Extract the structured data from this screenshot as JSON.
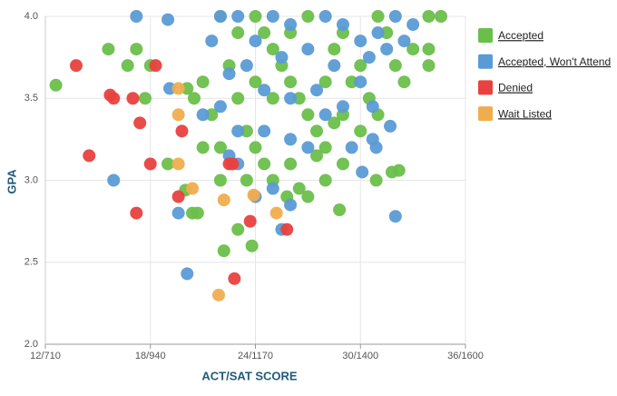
{
  "chart_data": {
    "type": "scatter",
    "x_label": "ACT/SAT SCORE",
    "y_label": "GPA",
    "xlim": [
      12,
      36
    ],
    "ylim": [
      2,
      4
    ],
    "xticks": [
      {
        "value": 12,
        "label": "12/710"
      },
      {
        "value": 18,
        "label": "18/940"
      },
      {
        "value": 24,
        "label": "24/1170"
      },
      {
        "value": 30,
        "label": "30/1400"
      },
      {
        "value": 36,
        "label": "36/1600"
      }
    ],
    "yticks": [
      {
        "value": 2,
        "label": "2.0"
      },
      {
        "value": 2.5,
        "label": "2.5"
      },
      {
        "value": 3,
        "label": "3.0"
      },
      {
        "value": 3.5,
        "label": "3.5"
      },
      {
        "value": 4,
        "label": "4.0"
      }
    ],
    "grid": true,
    "legend": "right",
    "series": [
      {
        "name": "Accepted",
        "color": "#6abf4b",
        "x": [
          12.6,
          15.6,
          17.2,
          16.7,
          17.7,
          18.0,
          19.0,
          20.1,
          20.4,
          20.7,
          20.0,
          22.2,
          23.8,
          23.0,
          32.2,
          31.8,
          33.9,
          33.9,
          34.6,
          33.9,
          30.9,
          28.8,
          24.5,
          25.8,
          24,
          24.5,
          25,
          25.5,
          26,
          26.5,
          27,
          27.5,
          28,
          28.5,
          29,
          29.5,
          30,
          30.5,
          31,
          31.5,
          32,
          32.5,
          33,
          22,
          22.5,
          23,
          23.5,
          22,
          21,
          21.5,
          20.5,
          24,
          25,
          26,
          27,
          28,
          29,
          30,
          31,
          26,
          27,
          28,
          29,
          25,
          24,
          23,
          26.5,
          27.5,
          28.5,
          23.5,
          22,
          21
        ],
        "values": [
          3.58,
          3.8,
          3.8,
          3.7,
          3.5,
          3.7,
          3.1,
          3.56,
          2.8,
          2.8,
          2.94,
          2.57,
          2.6,
          2.7,
          3.06,
          3.05,
          3.7,
          3.8,
          4.0,
          4.0,
          3.0,
          2.82,
          3.1,
          2.9,
          4.0,
          3.9,
          3.8,
          3.7,
          3.6,
          3.5,
          3.4,
          3.3,
          3.2,
          3.8,
          3.9,
          3.6,
          3.7,
          3.5,
          4.0,
          3.9,
          3.7,
          3.6,
          3.8,
          4.0,
          3.7,
          3.5,
          3.3,
          3.2,
          3.6,
          3.4,
          3.5,
          3.2,
          3.0,
          3.1,
          2.9,
          3.0,
          3.1,
          3.3,
          3.4,
          3.9,
          4.0,
          3.6,
          3.4,
          3.5,
          3.6,
          3.9,
          2.95,
          3.15,
          3.35,
          3.0,
          3.0,
          3.2
        ]
      },
      {
        "name": "Accepted, Won't Attend",
        "color": "#5b9bd5",
        "x": [
          17.2,
          19.0,
          15.9,
          20.1,
          19.6,
          19.1,
          32.0,
          31.7,
          30.7,
          30.9,
          30.7,
          30.1,
          22,
          23,
          25,
          26,
          28,
          29,
          30,
          31,
          32,
          33,
          24,
          25.5,
          27,
          28.5,
          30.5,
          31.5,
          32.5,
          21.5,
          22.5,
          23.5,
          24.5,
          26,
          27.5,
          29,
          30,
          21,
          22,
          23,
          24.5,
          26,
          27,
          28,
          29.5,
          22.5,
          25,
          26,
          25.5,
          24,
          23
        ],
        "values": [
          4.0,
          3.98,
          3.0,
          2.43,
          2.8,
          3.56,
          2.78,
          3.33,
          3.25,
          3.2,
          3.45,
          3.05,
          4.0,
          4.0,
          4.0,
          3.95,
          4.0,
          3.95,
          3.85,
          3.9,
          4.0,
          3.95,
          3.85,
          3.75,
          3.8,
          3.7,
          3.75,
          3.8,
          3.85,
          3.85,
          3.65,
          3.7,
          3.55,
          3.5,
          3.55,
          3.45,
          3.6,
          3.4,
          3.45,
          3.3,
          3.3,
          3.25,
          3.2,
          3.4,
          3.2,
          3.15,
          2.95,
          2.85,
          2.7,
          2.9,
          3.1
        ]
      },
      {
        "name": "Denied",
        "color": "#e8413f",
        "x": [
          13.76,
          14.5,
          15.7,
          15.9,
          17.2,
          17.4,
          17.0,
          18.0,
          18.3,
          19.6,
          19.8,
          22.5,
          22.8,
          23.7,
          25.8,
          22.7
        ],
        "values": [
          3.7,
          3.15,
          3.52,
          3.5,
          2.8,
          3.35,
          3.5,
          3.1,
          3.7,
          2.9,
          3.3,
          3.1,
          2.4,
          2.75,
          2.7,
          3.1
        ]
      },
      {
        "name": "Wait Listed",
        "color": "#f0ad4e",
        "x": [
          19.6,
          19.6,
          19.6,
          20.4,
          21.9,
          22.2,
          23.9,
          25.2
        ],
        "values": [
          3.56,
          3.4,
          3.1,
          2.95,
          2.3,
          2.88,
          2.91,
          2.8
        ]
      }
    ]
  }
}
